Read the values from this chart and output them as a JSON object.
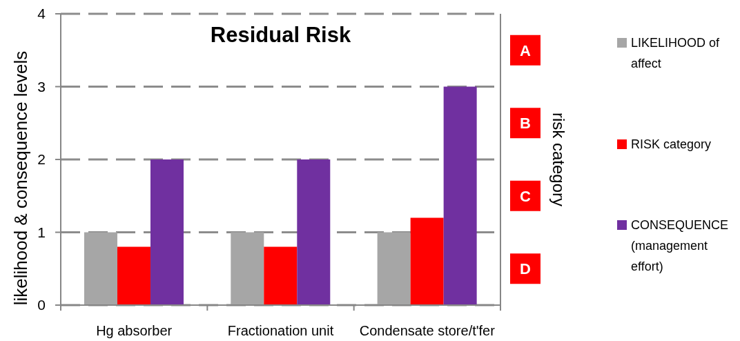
{
  "chart_data": {
    "type": "bar",
    "title": "Residual Risk",
    "ylabel": "likelihood & consequence levels",
    "y2label": "risk category",
    "categories": [
      "Hg absorber",
      "Fractionation unit",
      "Condensate store/t'fer"
    ],
    "series": [
      {
        "name": "LIKELIHOOD of affect",
        "color": "#a6a6a6",
        "values": [
          1,
          1,
          1
        ]
      },
      {
        "name": "RISK category",
        "color": "#ff0000",
        "values": [
          0.8,
          0.8,
          1.2
        ]
      },
      {
        "name": "CONSEQUENCE (management effort)",
        "color": "#7030a0",
        "values": [
          2,
          2,
          3
        ]
      }
    ],
    "ylim": [
      0,
      4
    ],
    "yticks": [
      0,
      1,
      2,
      3,
      4
    ],
    "annotations": [
      "A",
      "B",
      "C",
      "D"
    ],
    "grid": "y",
    "legend": "right"
  }
}
